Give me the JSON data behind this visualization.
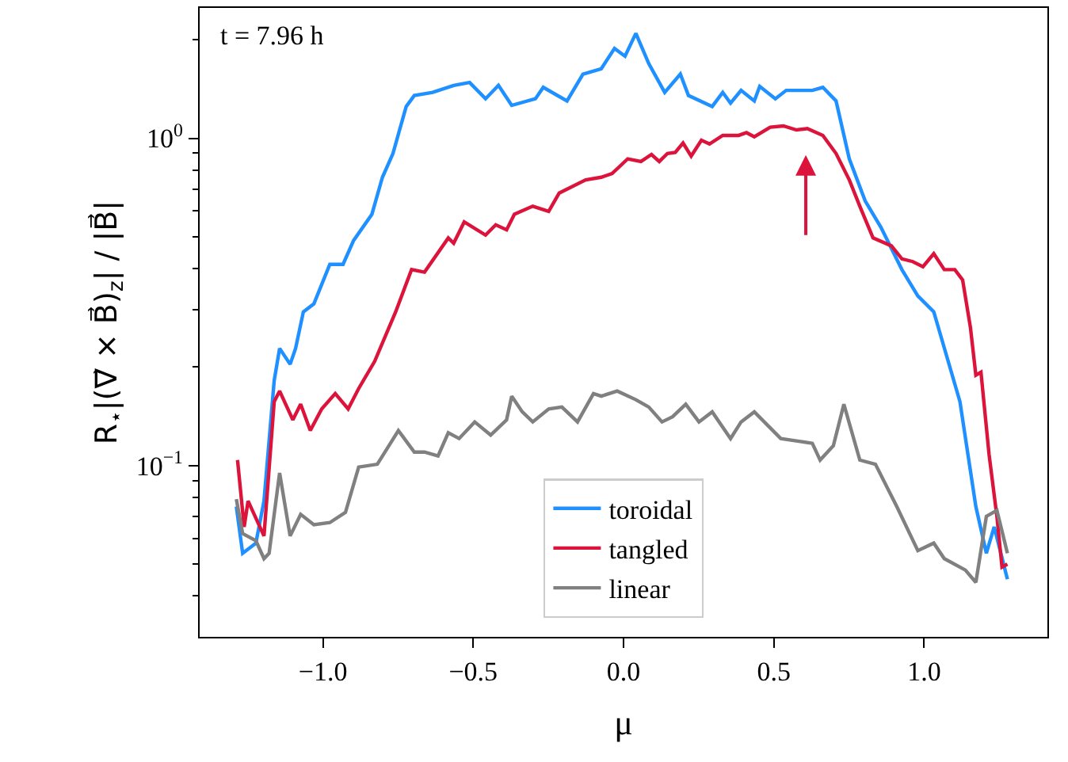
{
  "chart_data": {
    "type": "line",
    "xlabel": "μ",
    "ylabel": "R$_{⋆}$|(∇⃗ × B⃗)$_{z}$| / |B⃗|",
    "annotations": [
      "t = 7.96 h"
    ],
    "log": "y",
    "legend": "bottom",
    "line_style": "solid",
    "marker": "none",
    "xlim": [
      -1.41,
      1.41
    ],
    "ylim": [
      0.03,
      2.5
    ],
    "xticks": [
      {
        "value": -1.0,
        "label": "−1.0"
      },
      {
        "value": -0.5,
        "label": "−0.5"
      },
      {
        "value": 0.0,
        "label": "0.0"
      },
      {
        "value": 0.5,
        "label": "0.5"
      },
      {
        "value": 1.0,
        "label": "1.0"
      }
    ],
    "yticks": [
      {
        "value": 0.04,
        "label": null
      },
      {
        "value": 0.05,
        "label": null
      },
      {
        "value": 0.06,
        "label": null
      },
      {
        "value": 0.07,
        "label": null
      },
      {
        "value": 0.08,
        "label": null
      },
      {
        "value": 0.09,
        "label": null
      },
      {
        "value": 0.1,
        "label": "10$^{−1}$"
      },
      {
        "value": 0.2,
        "label": null
      },
      {
        "value": 0.3,
        "label": null
      },
      {
        "value": 0.4,
        "label": null
      },
      {
        "value": 0.5,
        "label": null
      },
      {
        "value": 0.6,
        "label": null
      },
      {
        "value": 0.7,
        "label": null
      },
      {
        "value": 0.8,
        "label": null
      },
      {
        "value": 0.9,
        "label": null
      },
      {
        "value": 1,
        "label": "10$^{0}$"
      },
      {
        "value": 2,
        "label": null
      }
    ],
    "series": [
      {
        "name": "toroidal",
        "color": "#1e90ff",
        "x": [
          -1.288,
          -1.267,
          -1.223,
          -1.196,
          -1.162,
          -1.144,
          -1.109,
          -1.091,
          -1.065,
          -1.03,
          -0.977,
          -0.933,
          -0.898,
          -0.837,
          -0.802,
          -0.767,
          -0.723,
          -0.696,
          -0.635,
          -0.565,
          -0.512,
          -0.459,
          -0.416,
          -0.372,
          -0.293,
          -0.267,
          -0.188,
          -0.135,
          -0.074,
          -0.03,
          0.005,
          0.041,
          0.084,
          0.137,
          0.189,
          0.216,
          0.295,
          0.33,
          0.356,
          0.391,
          0.435,
          0.453,
          0.505,
          0.541,
          0.628,
          0.663,
          0.707,
          0.751,
          0.804,
          0.856,
          0.926,
          0.979,
          1.032,
          1.119,
          1.172,
          1.207,
          1.233,
          1.277
        ],
        "values": [
          0.075,
          0.054,
          0.058,
          0.078,
          0.182,
          0.228,
          0.204,
          0.228,
          0.295,
          0.312,
          0.412,
          0.412,
          0.487,
          0.586,
          0.76,
          0.898,
          1.25,
          1.35,
          1.38,
          1.45,
          1.48,
          1.32,
          1.45,
          1.26,
          1.32,
          1.43,
          1.3,
          1.57,
          1.63,
          1.88,
          1.78,
          2.09,
          1.69,
          1.38,
          1.57,
          1.35,
          1.25,
          1.38,
          1.28,
          1.4,
          1.3,
          1.44,
          1.32,
          1.4,
          1.4,
          1.43,
          1.3,
          0.865,
          0.643,
          0.535,
          0.397,
          0.33,
          0.295,
          0.157,
          0.075,
          0.054,
          0.065,
          0.045
        ]
      },
      {
        "name": "tangled",
        "color": "#dc143c",
        "x": [
          -1.284,
          -1.262,
          -1.249,
          -1.196,
          -1.162,
          -1.144,
          -1.1,
          -1.074,
          -1.042,
          -1.004,
          -0.959,
          -0.916,
          -0.881,
          -0.828,
          -0.758,
          -0.705,
          -0.662,
          -0.583,
          -0.565,
          -0.53,
          -0.459,
          -0.425,
          -0.389,
          -0.363,
          -0.302,
          -0.249,
          -0.214,
          -0.126,
          -0.074,
          -0.038,
          0.014,
          0.058,
          0.093,
          0.119,
          0.146,
          0.172,
          0.198,
          0.225,
          0.259,
          0.286,
          0.33,
          0.383,
          0.409,
          0.435,
          0.488,
          0.532,
          0.575,
          0.611,
          0.663,
          0.707,
          0.751,
          0.786,
          0.83,
          0.891,
          0.926,
          0.962,
          0.996,
          1.032,
          1.067,
          1.102,
          1.128,
          1.154,
          1.172,
          1.189,
          1.216,
          1.242,
          1.259,
          1.277
        ],
        "values": [
          0.104,
          0.065,
          0.078,
          0.061,
          0.157,
          0.169,
          0.138,
          0.154,
          0.128,
          0.149,
          0.166,
          0.149,
          0.172,
          0.208,
          0.295,
          0.397,
          0.39,
          0.496,
          0.478,
          0.555,
          0.506,
          0.544,
          0.525,
          0.586,
          0.62,
          0.598,
          0.68,
          0.746,
          0.76,
          0.78,
          0.865,
          0.849,
          0.892,
          0.849,
          0.898,
          0.905,
          0.967,
          0.882,
          0.986,
          0.96,
          1.02,
          1.02,
          1.04,
          1.01,
          1.08,
          1.09,
          1.06,
          1.07,
          1.02,
          0.898,
          0.746,
          0.62,
          0.496,
          0.469,
          0.428,
          0.42,
          0.405,
          0.444,
          0.397,
          0.397,
          0.369,
          0.264,
          0.189,
          0.193,
          0.108,
          0.07,
          0.049,
          0.05
        ]
      },
      {
        "name": "linear",
        "color": "#808080",
        "x": [
          -1.288,
          -1.267,
          -1.223,
          -1.196,
          -1.179,
          -1.144,
          -1.109,
          -1.074,
          -1.03,
          -0.977,
          -0.925,
          -0.881,
          -0.819,
          -0.749,
          -0.696,
          -0.662,
          -0.617,
          -0.583,
          -0.547,
          -0.495,
          -0.442,
          -0.389,
          -0.372,
          -0.337,
          -0.302,
          -0.249,
          -0.205,
          -0.153,
          -0.1,
          -0.074,
          -0.021,
          0.041,
          0.084,
          0.128,
          0.163,
          0.207,
          0.251,
          0.295,
          0.356,
          0.391,
          0.435,
          0.523,
          0.575,
          0.628,
          0.654,
          0.698,
          0.733,
          0.786,
          0.838,
          0.909,
          0.979,
          1.032,
          1.067,
          1.137,
          1.172,
          1.207,
          1.242,
          1.277
        ],
        "values": [
          0.079,
          0.062,
          0.059,
          0.052,
          0.054,
          0.095,
          0.061,
          0.071,
          0.066,
          0.067,
          0.072,
          0.099,
          0.101,
          0.128,
          0.11,
          0.11,
          0.107,
          0.126,
          0.121,
          0.136,
          0.124,
          0.138,
          0.163,
          0.146,
          0.136,
          0.149,
          0.151,
          0.136,
          0.166,
          0.163,
          0.169,
          0.159,
          0.151,
          0.136,
          0.141,
          0.154,
          0.136,
          0.146,
          0.121,
          0.136,
          0.146,
          0.121,
          0.119,
          0.117,
          0.104,
          0.115,
          0.154,
          0.104,
          0.101,
          0.075,
          0.055,
          0.058,
          0.052,
          0.048,
          0.044,
          0.07,
          0.073,
          0.054
        ]
      }
    ]
  }
}
